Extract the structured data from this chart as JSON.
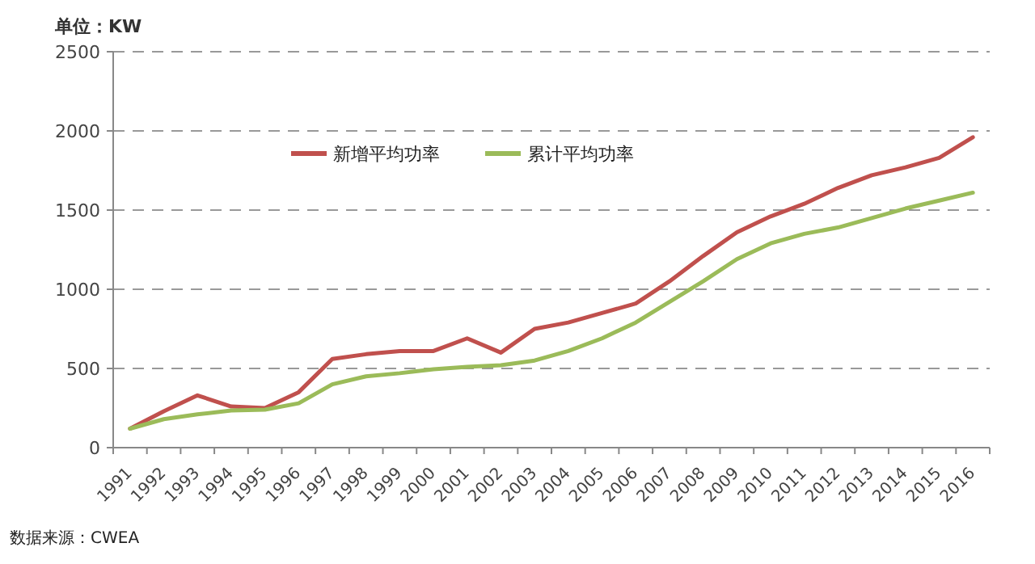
{
  "chart_data": {
    "type": "line",
    "ylabel": "单位：KW",
    "categories": [
      "1991",
      "1992",
      "1993",
      "1994",
      "1995",
      "1996",
      "1997",
      "1998",
      "1999",
      "2000",
      "2001",
      "2002",
      "2003",
      "2004",
      "2005",
      "2006",
      "2007",
      "2008",
      "2009",
      "2010",
      "2011",
      "2012",
      "2013",
      "2014",
      "2015",
      "2016"
    ],
    "series": [
      {
        "name": "新增平均功率",
        "color": "#c0504d",
        "values": [
          120,
          230,
          330,
          260,
          250,
          350,
          560,
          590,
          610,
          610,
          690,
          600,
          750,
          790,
          850,
          910,
          1050,
          1210,
          1360,
          1460,
          1540,
          1640,
          1720,
          1770,
          1830,
          1960
        ]
      },
      {
        "name": "累计平均功率",
        "color": "#9bbb59",
        "values": [
          120,
          180,
          210,
          235,
          240,
          280,
          400,
          450,
          470,
          495,
          510,
          520,
          550,
          610,
          690,
          790,
          920,
          1050,
          1190,
          1290,
          1350,
          1390,
          1450,
          1510,
          1560,
          1610
        ]
      }
    ],
    "ylim": [
      0,
      2500
    ],
    "yticks": [
      0,
      500,
      1000,
      1500,
      2000,
      2500
    ],
    "grid": "y",
    "legend": "top",
    "marker": "none",
    "line_style": "solid",
    "annotations": [
      "数据来源：CWEA"
    ]
  }
}
